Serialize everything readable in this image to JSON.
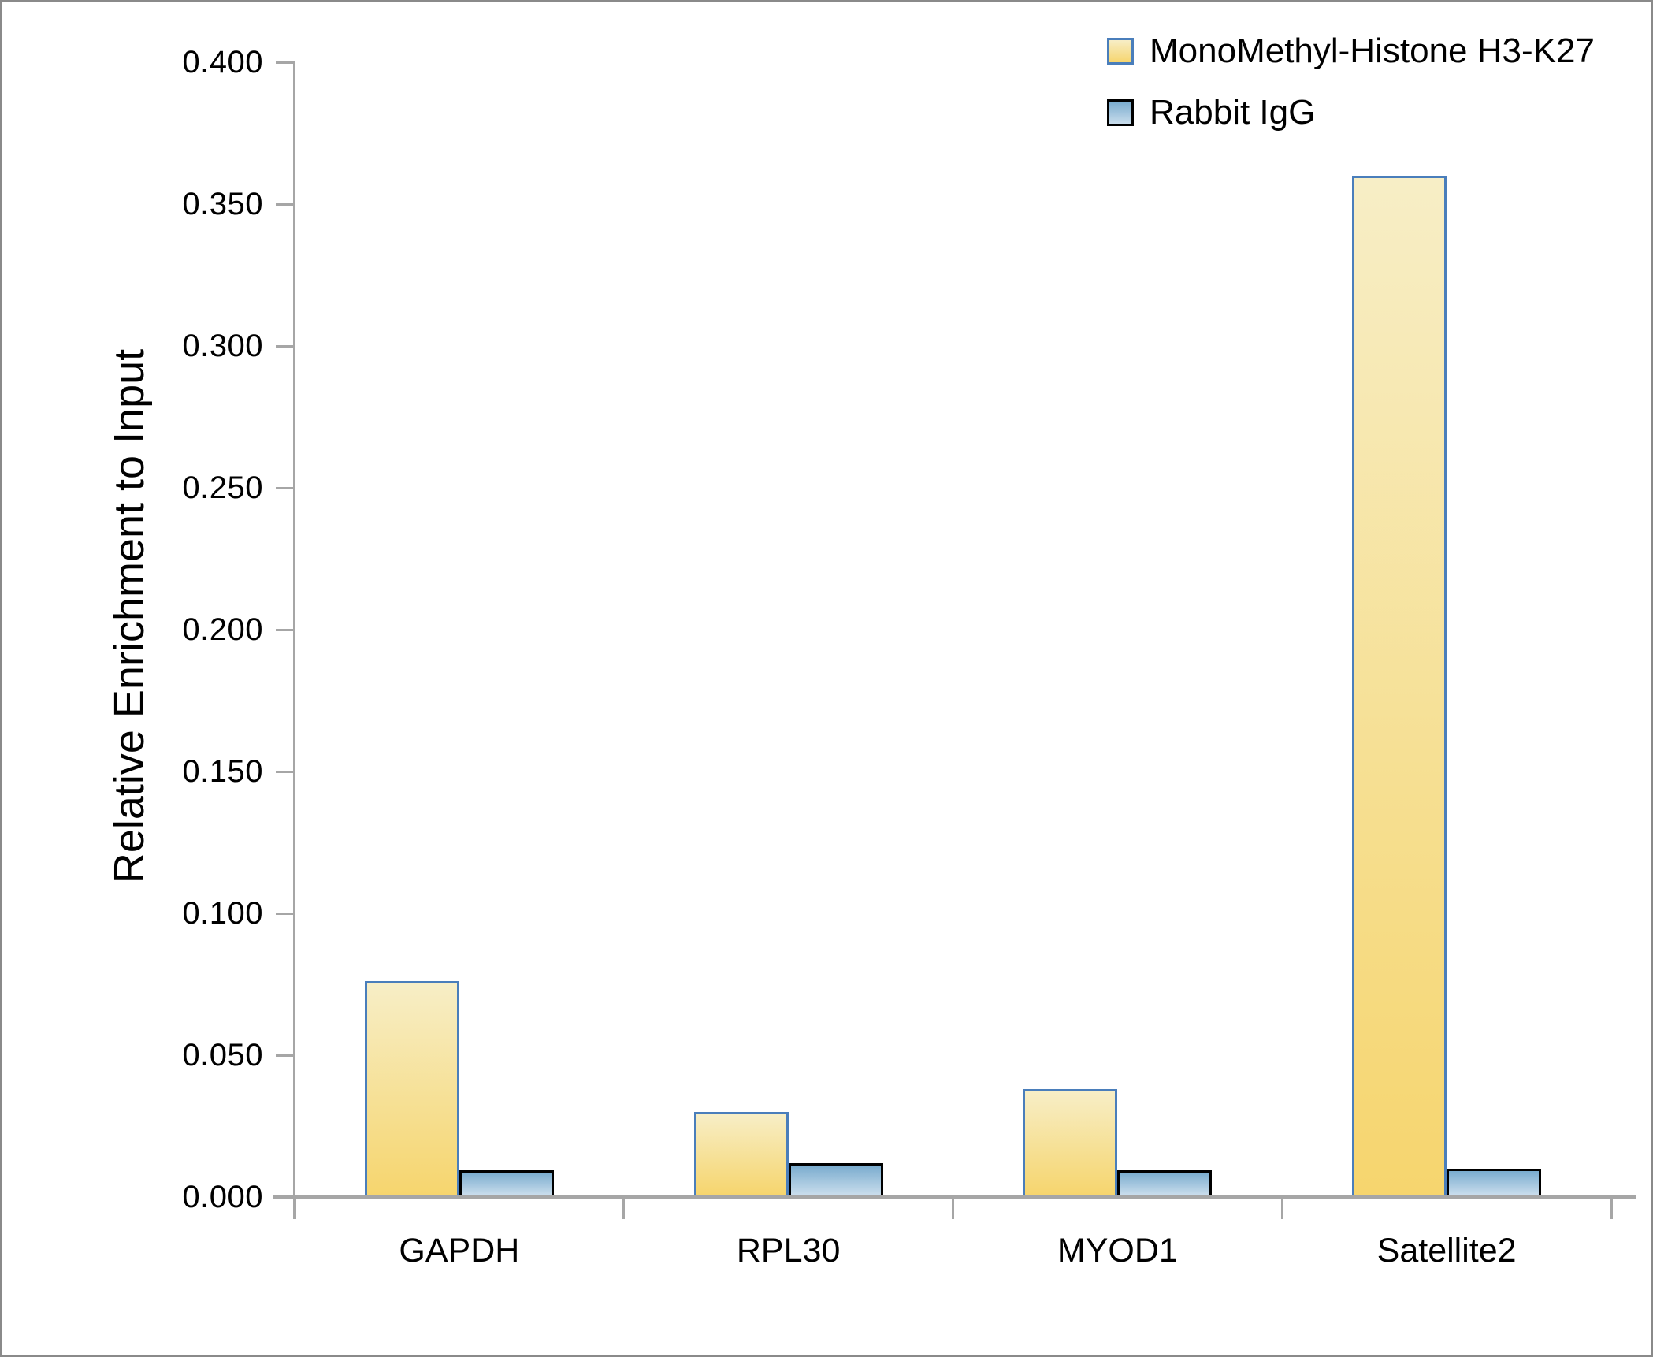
{
  "figure": {
    "background": "#ffffff",
    "frame_color": "#8a8a8a"
  },
  "chart_data": {
    "type": "bar",
    "title": "",
    "xlabel": "",
    "ylabel": "Relative Enrichment to Input",
    "categories": [
      "GAPDH",
      "RPL30",
      "MYOD1",
      "Satellite2"
    ],
    "series": [
      {
        "name": "MonoMethyl-Histone H3-K27",
        "values": [
          0.076,
          0.03,
          0.038,
          0.36
        ],
        "fill_top": "#f7eec6",
        "fill_bottom": "#f6d56e",
        "border_color": "#4a7ebb"
      },
      {
        "name": "Rabbit IgG",
        "values": [
          0.0095,
          0.012,
          0.0095,
          0.01
        ],
        "fill_top": "#79abce",
        "fill_bottom": "#c9ddec",
        "border_color": "#000000"
      }
    ],
    "ylim": [
      0,
      0.4
    ],
    "ytick_step": 0.05,
    "ytick_labels": [
      "0.000",
      "0.050",
      "0.100",
      "0.150",
      "0.200",
      "0.250",
      "0.300",
      "0.350",
      "0.400"
    ],
    "grid": false,
    "legend_position": "top-right",
    "axis_color": "#a6a6a6",
    "text_color": "#000000"
  }
}
